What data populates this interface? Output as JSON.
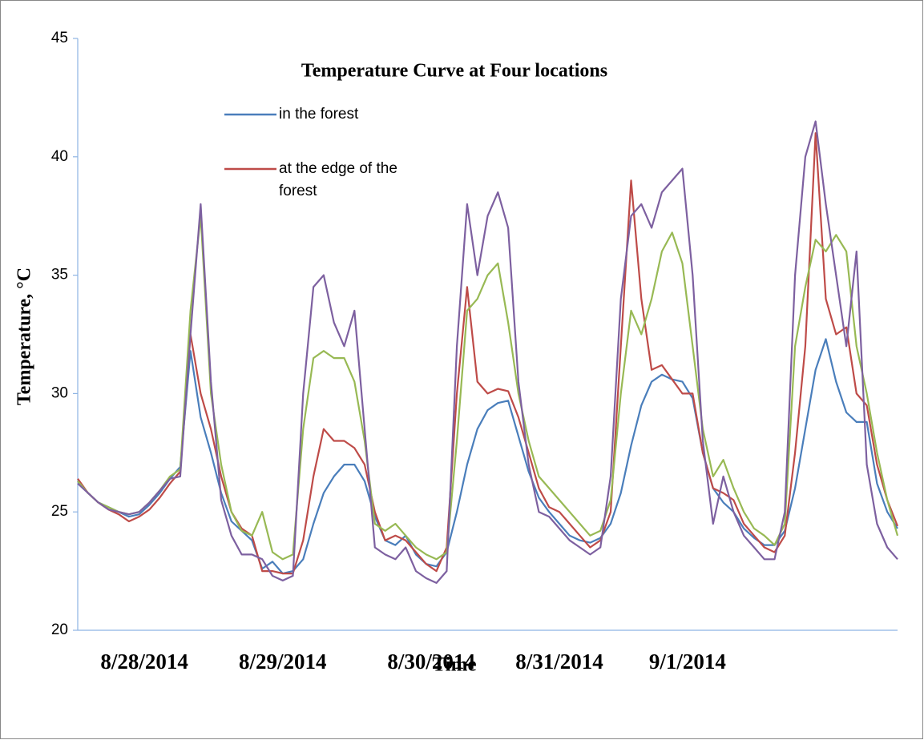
{
  "chart_data": {
    "type": "line",
    "title": "Temperature Curve at Four locations",
    "x_label": "Time",
    "y_label": "Temperature, °C",
    "xlim": [
      0,
      80
    ],
    "xticks": [
      {
        "value": 6.5,
        "label": "8/28/2014"
      },
      {
        "value": 20,
        "label": "8/29/2014"
      },
      {
        "value": 34.5,
        "label": "8/30/2014"
      },
      {
        "value": 47,
        "label": "8/31/2014"
      },
      {
        "value": 59.5,
        "label": "9/1/2014"
      }
    ],
    "ylim": [
      20,
      45
    ],
    "yticks": [
      20,
      25,
      30,
      35,
      40,
      45
    ],
    "grid": false,
    "series": [
      {
        "name": "in the forest",
        "color": "#4a7ebb",
        "values": [
          26.3,
          25.8,
          25.4,
          25.2,
          25.0,
          24.8,
          24.9,
          25.3,
          25.8,
          26.4,
          26.9,
          31.8,
          29.0,
          27.5,
          25.8,
          24.6,
          24.2,
          23.8,
          22.6,
          22.9,
          22.4,
          22.5,
          23.0,
          24.5,
          25.8,
          26.5,
          27.0,
          27.0,
          26.3,
          24.8,
          23.8,
          23.6,
          24.0,
          23.2,
          22.8,
          22.7,
          23.3,
          25.0,
          27.0,
          28.5,
          29.3,
          29.6,
          29.7,
          28.2,
          26.7,
          25.6,
          25.0,
          24.5,
          24.0,
          23.8,
          23.7,
          23.9,
          24.5,
          25.8,
          27.8,
          29.5,
          30.5,
          30.8,
          30.6,
          30.5,
          29.8,
          27.5,
          26.0,
          25.4,
          25.0,
          24.3,
          23.9,
          23.6,
          23.6,
          24.2,
          26.0,
          28.5,
          31.0,
          32.3,
          30.5,
          29.2,
          28.8,
          28.8,
          26.2,
          25.0,
          24.3
        ]
      },
      {
        "name": "at the edge of the forest",
        "color": "#be4b48",
        "values": [
          26.4,
          25.8,
          25.4,
          25.1,
          24.9,
          24.6,
          24.8,
          25.1,
          25.6,
          26.2,
          26.7,
          32.5,
          30.0,
          28.5,
          26.5,
          25.0,
          24.3,
          24.0,
          22.5,
          22.5,
          22.4,
          22.4,
          23.8,
          26.5,
          28.5,
          28.0,
          28.0,
          27.7,
          27.0,
          25.0,
          23.8,
          24.0,
          23.8,
          23.3,
          22.8,
          22.5,
          23.5,
          30.0,
          34.5,
          30.5,
          30.0,
          30.2,
          30.1,
          29.0,
          27.5,
          26.0,
          25.2,
          25.0,
          24.5,
          24.0,
          23.5,
          23.8,
          25.0,
          32.0,
          39.0,
          34.0,
          31.0,
          31.2,
          30.6,
          30.0,
          30.0,
          27.5,
          26.0,
          25.8,
          25.5,
          24.5,
          24.0,
          23.5,
          23.3,
          24.0,
          27.5,
          32.0,
          41.0,
          34.0,
          32.5,
          32.8,
          30.0,
          29.5,
          27.0,
          25.5,
          24.4
        ]
      },
      {
        "color": "#98b954",
        "values": [
          26.3,
          25.8,
          25.4,
          25.2,
          25.0,
          24.9,
          25.0,
          25.4,
          25.9,
          26.5,
          26.8,
          33.5,
          37.5,
          30.0,
          27.0,
          25.0,
          24.2,
          24.0,
          25.0,
          23.3,
          23.0,
          23.2,
          28.5,
          31.5,
          31.8,
          31.5,
          31.5,
          30.5,
          28.0,
          24.5,
          24.2,
          24.5,
          24.0,
          23.5,
          23.2,
          23.0,
          23.3,
          28.0,
          33.5,
          34.0,
          35.0,
          35.5,
          33.0,
          30.0,
          28.0,
          26.5,
          26.0,
          25.5,
          25.0,
          24.5,
          24.0,
          24.2,
          25.5,
          30.0,
          33.5,
          32.5,
          34.0,
          36.0,
          36.8,
          35.5,
          32.0,
          28.5,
          26.5,
          27.2,
          26.0,
          25.0,
          24.3,
          24.0,
          23.6,
          24.5,
          32.0,
          34.5,
          36.5,
          36.0,
          36.7,
          36.0,
          32.0,
          30.0,
          27.5,
          25.5,
          24.0
        ]
      },
      {
        "color": "#7d60a0",
        "values": [
          26.2,
          25.8,
          25.4,
          25.1,
          25.0,
          24.9,
          25.0,
          25.4,
          25.9,
          26.4,
          26.5,
          32.5,
          38.0,
          30.5,
          25.5,
          24.0,
          23.2,
          23.2,
          23.0,
          22.3,
          22.1,
          22.3,
          30.0,
          34.5,
          35.0,
          33.0,
          32.0,
          33.5,
          28.5,
          23.5,
          23.2,
          23.0,
          23.5,
          22.5,
          22.2,
          22.0,
          22.5,
          32.0,
          38.0,
          35.0,
          37.5,
          38.5,
          37.0,
          30.5,
          27.0,
          25.0,
          24.8,
          24.3,
          23.8,
          23.5,
          23.2,
          23.5,
          26.5,
          34.0,
          37.5,
          38.0,
          37.0,
          38.5,
          39.0,
          39.5,
          35.0,
          28.0,
          24.5,
          26.5,
          25.0,
          24.0,
          23.5,
          23.0,
          23.0,
          25.0,
          35.0,
          40.0,
          41.5,
          38.0,
          35.0,
          32.0,
          36.0,
          27.0,
          24.5,
          23.5,
          23.0
        ]
      }
    ]
  }
}
